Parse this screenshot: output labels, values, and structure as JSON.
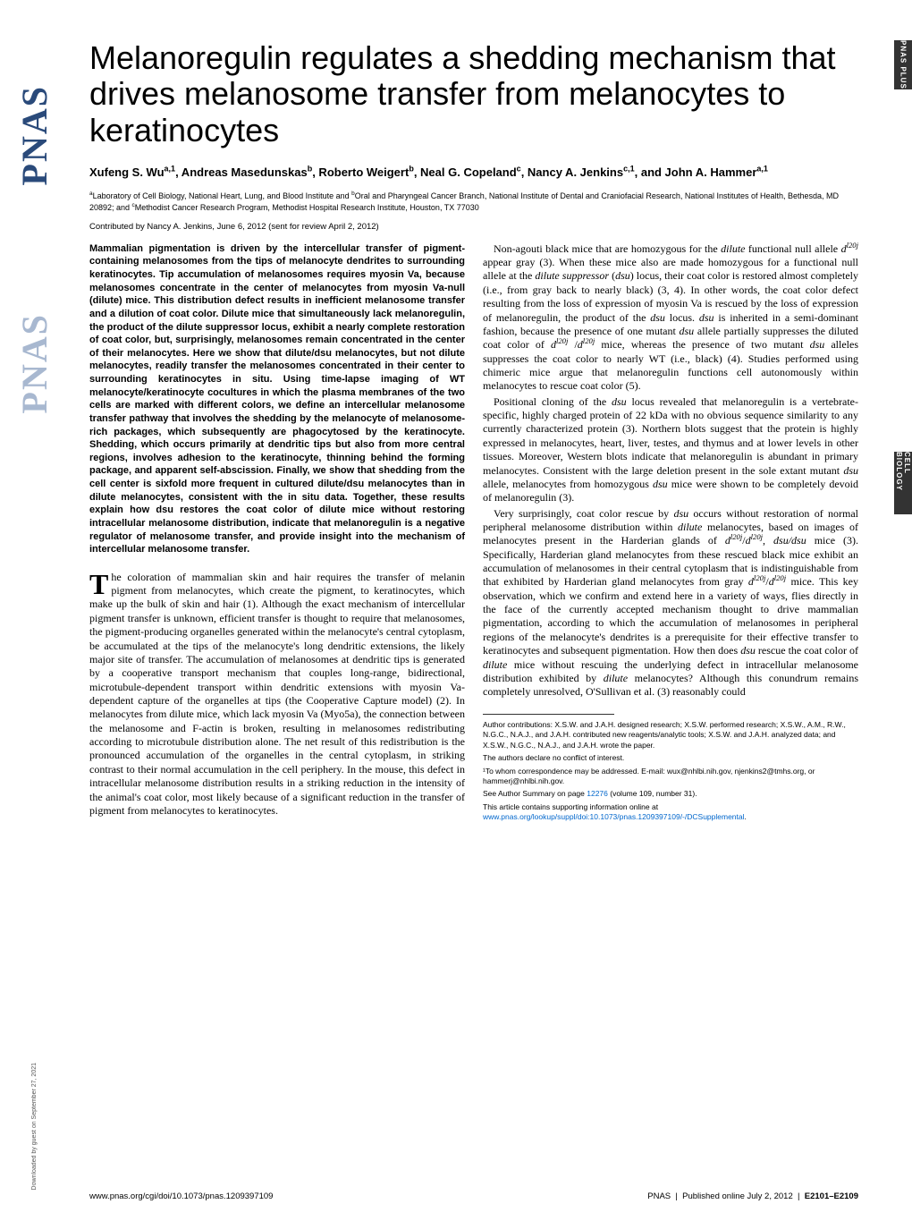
{
  "sideTab1": "PNAS PLUS",
  "sideTab2": "CELL BIOLOGY",
  "pnasLogo": "PNAS",
  "downloadNote": "Downloaded by guest on September 27, 2021",
  "title": "Melanoregulin regulates a shedding mechanism that drives melanosome transfer from melanocytes to keratinocytes",
  "authorsHtml": "Xufeng S. Wu<sup>a,1</sup>, Andreas Masedunskas<sup>b</sup>, Roberto Weigert<sup>b</sup>, Neal G. Copeland<sup>c</sup>, Nancy A. Jenkins<sup>c,1</sup>, and John A. Hammer<sup>a,1</sup>",
  "affiliationsHtml": "<sup>a</sup>Laboratory of Cell Biology, National Heart, Lung, and Blood Institute and <sup>b</sup>Oral and Pharyngeal Cancer Branch, National Institute of Dental and Craniofacial Research, National Institutes of Health, Bethesda, MD 20892; and <sup>c</sup>Methodist Cancer Research Program, Methodist Hospital Research Institute, Houston, TX 77030",
  "contributed": "Contributed by Nancy A. Jenkins, June 6, 2012 (sent for review April 2, 2012)",
  "abstract": "Mammalian pigmentation is driven by the intercellular transfer of pigment-containing melanosomes from the tips of melanocyte dendrites to surrounding keratinocytes. Tip accumulation of melanosomes requires myosin Va, because melanosomes concentrate in the center of melanocytes from myosin Va-null (dilute) mice. This distribution defect results in inefficient melanosome transfer and a dilution of coat color. Dilute mice that simultaneously lack melanoregulin, the product of the dilute suppressor locus, exhibit a nearly complete restoration of coat color, but, surprisingly, melanosomes remain concentrated in the center of their melanocytes. Here we show that dilute/dsu melanocytes, but not dilute melanocytes, readily transfer the melanosomes concentrated in their center to surrounding keratinocytes in situ. Using time-lapse imaging of WT melanocyte/keratinocyte cocultures in which the plasma membranes of the two cells are marked with different colors, we define an intercellular melanosome transfer pathway that involves the shedding by the melanocyte of melanosome-rich packages, which subsequently are phagocytosed by the keratinocyte. Shedding, which occurs primarily at dendritic tips but also from more central regions, involves adhesion to the keratinocyte, thinning behind the forming package, and apparent self-abscission. Finally, we show that shedding from the cell center is sixfold more frequent in cultured dilute/dsu melanocytes than in dilute melanocytes, consistent with the in situ data. Together, these results explain how dsu restores the coat color of dilute mice without restoring intracellular melanosome distribution, indicate that melanoregulin is a negative regulator of melanosome transfer, and provide insight into the mechanism of intercellular melanosome transfer.",
  "col1Body": "he coloration of mammalian skin and hair requires the transfer of melanin pigment from melanocytes, which create the pigment, to keratinocytes, which make up the bulk of skin and hair (1). Although the exact mechanism of intercellular pigment transfer is unknown, efficient transfer is thought to require that melanosomes, the pigment-producing organelles generated within the melanocyte's central cytoplasm, be accumulated at the tips of the melanocyte's long dendritic extensions, the likely major site of transfer. The accumulation of melanosomes at dendritic tips is generated by a cooperative transport mechanism that couples long-range, bidirectional, microtubule-dependent transport within dendritic extensions with myosin Va-dependent capture of the organelles at tips (the Cooperative Capture model) (2). In melanocytes from dilute mice, which lack myosin Va (Myo5a), the connection between the melanosome and F-actin is broken, resulting in melanosomes redistributing according to microtubule distribution alone. The net result of this redistribution is the pronounced accumulation of the organelles in the central cytoplasm, in striking contrast to their normal accumulation in the cell periphery. In the mouse, this defect in intracellular melanosome distribution results in a striking reduction in the intensity of the animal's coat color, most likely because of a significant reduction in the transfer of pigment from melanocytes to keratinocytes.",
  "col2p1Html": "Non-agouti black mice that are homozygous for the <span class=\"italic\">dilute</span> functional null allele <span class=\"italic\">d<sup>l20j</sup></span> appear gray (3). When these mice also are made homozygous for a functional null allele at the <span class=\"italic\">dilute suppressor</span> (<span class=\"italic\">dsu</span>) locus, their coat color is restored almost completely (i.e., from gray back to nearly black) (3, 4). In other words, the coat color defect resulting from the loss of expression of myosin Va is rescued by the loss of expression of melanoregulin, the product of the <span class=\"italic\">dsu</span> locus. <span class=\"italic\">dsu</span> is inherited in a semi-dominant fashion, because the presence of one mutant <span class=\"italic\">dsu</span> allele partially suppresses the diluted coat color of <span class=\"italic\">d<sup>l20j</sup></span> /<span class=\"italic\">d<sup>l20j</sup></span> mice, whereas the presence of two mutant <span class=\"italic\">dsu</span> alleles suppresses the coat color to nearly WT (i.e., black) (4). Studies performed using chimeric mice argue that melanoregulin functions cell autonomously within melanocytes to rescue coat color (5).",
  "col2p2Html": "Positional cloning of the <span class=\"italic\">dsu</span> locus revealed that melanoregulin is a vertebrate-specific, highly charged protein of 22 kDa with no obvious sequence similarity to any currently characterized protein (3). Northern blots suggest that the protein is highly expressed in melanocytes, heart, liver, testes, and thymus and at lower levels in other tissues. Moreover, Western blots indicate that melanoregulin is abundant in primary melanocytes. Consistent with the large deletion present in the sole extant mutant <span class=\"italic\">dsu</span> allele, melanocytes from homozygous <span class=\"italic\">dsu</span> mice were shown to be completely devoid of melanoregulin (3).",
  "col2p3Html": "Very surprisingly, coat color rescue by <span class=\"italic\">dsu</span> occurs without restoration of normal peripheral melanosome distribution within <span class=\"italic\">dilute</span> melanocytes, based on images of melanocytes present in the Harderian glands of <span class=\"italic\">d<sup>l20j</sup></span>/<span class=\"italic\">d<sup>l20j</sup></span>, <span class=\"italic\">dsu/dsu</span> mice (3). Specifically, Harderian gland melanocytes from these rescued black mice exhibit an accumulation of melanosomes in their central cytoplasm that is indistinguishable from that exhibited by Harderian gland melanocytes from gray <span class=\"italic\">d<sup>l20j</sup></span>/<span class=\"italic\">d<sup>l20j</sup></span> mice. This key observation, which we confirm and extend here in a variety of ways, flies directly in the face of the currently accepted mechanism thought to drive mammalian pigmentation, according to which the accumulation of melanosomes in peripheral regions of the melanocyte's dendrites is a prerequisite for their effective transfer to keratinocytes and subsequent pigmentation. How then does <span class=\"italic\">dsu</span> rescue the coat color of <span class=\"italic\">dilute</span> mice without rescuing the underlying defect in intracellular melanosome distribution exhibited by <span class=\"italic\">dilute</span> melanocytes? Although this conundrum remains completely unresolved, O'Sullivan et al. (3) reasonably could",
  "footnotes": {
    "authorContrib": "Author contributions: X.S.W. and J.A.H. designed research; X.S.W. performed research; X.S.W., A.M., R.W., N.G.C., N.A.J., and J.A.H. contributed new reagents/analytic tools; X.S.W. and J.A.H. analyzed data; and X.S.W., N.G.C., N.A.J., and J.A.H. wrote the paper.",
    "conflict": "The authors declare no conflict of interest.",
    "correspondence": "¹To whom correspondence may be addressed. E-mail: wux@nhlbi.nih.gov, njenkins2@tmhs.org, or hammerj@nhlbi.nih.gov.",
    "summaryPrefix": "See Author Summary on page ",
    "summaryLink": "12276",
    "summarySuffix": " (volume 109, number 31).",
    "supportingPrefix": "This article contains supporting information online at ",
    "supportingLink": "www.pnas.org/lookup/suppl/doi:10.1073/pnas.1209397109/-/DCSupplemental",
    "supportingSuffix": "."
  },
  "footer": {
    "doi": "www.pnas.org/cgi/doi/10.1073/pnas.1209397109",
    "pubHtml": "PNAS &nbsp;|&nbsp; Published online July 2, 2012 &nbsp;|&nbsp; <b>E2101–E2109</b>"
  },
  "colors": {
    "link": "#0066cc",
    "pnasBlue": "#2a4a7a",
    "pnasLight": "#a8b8d0"
  }
}
